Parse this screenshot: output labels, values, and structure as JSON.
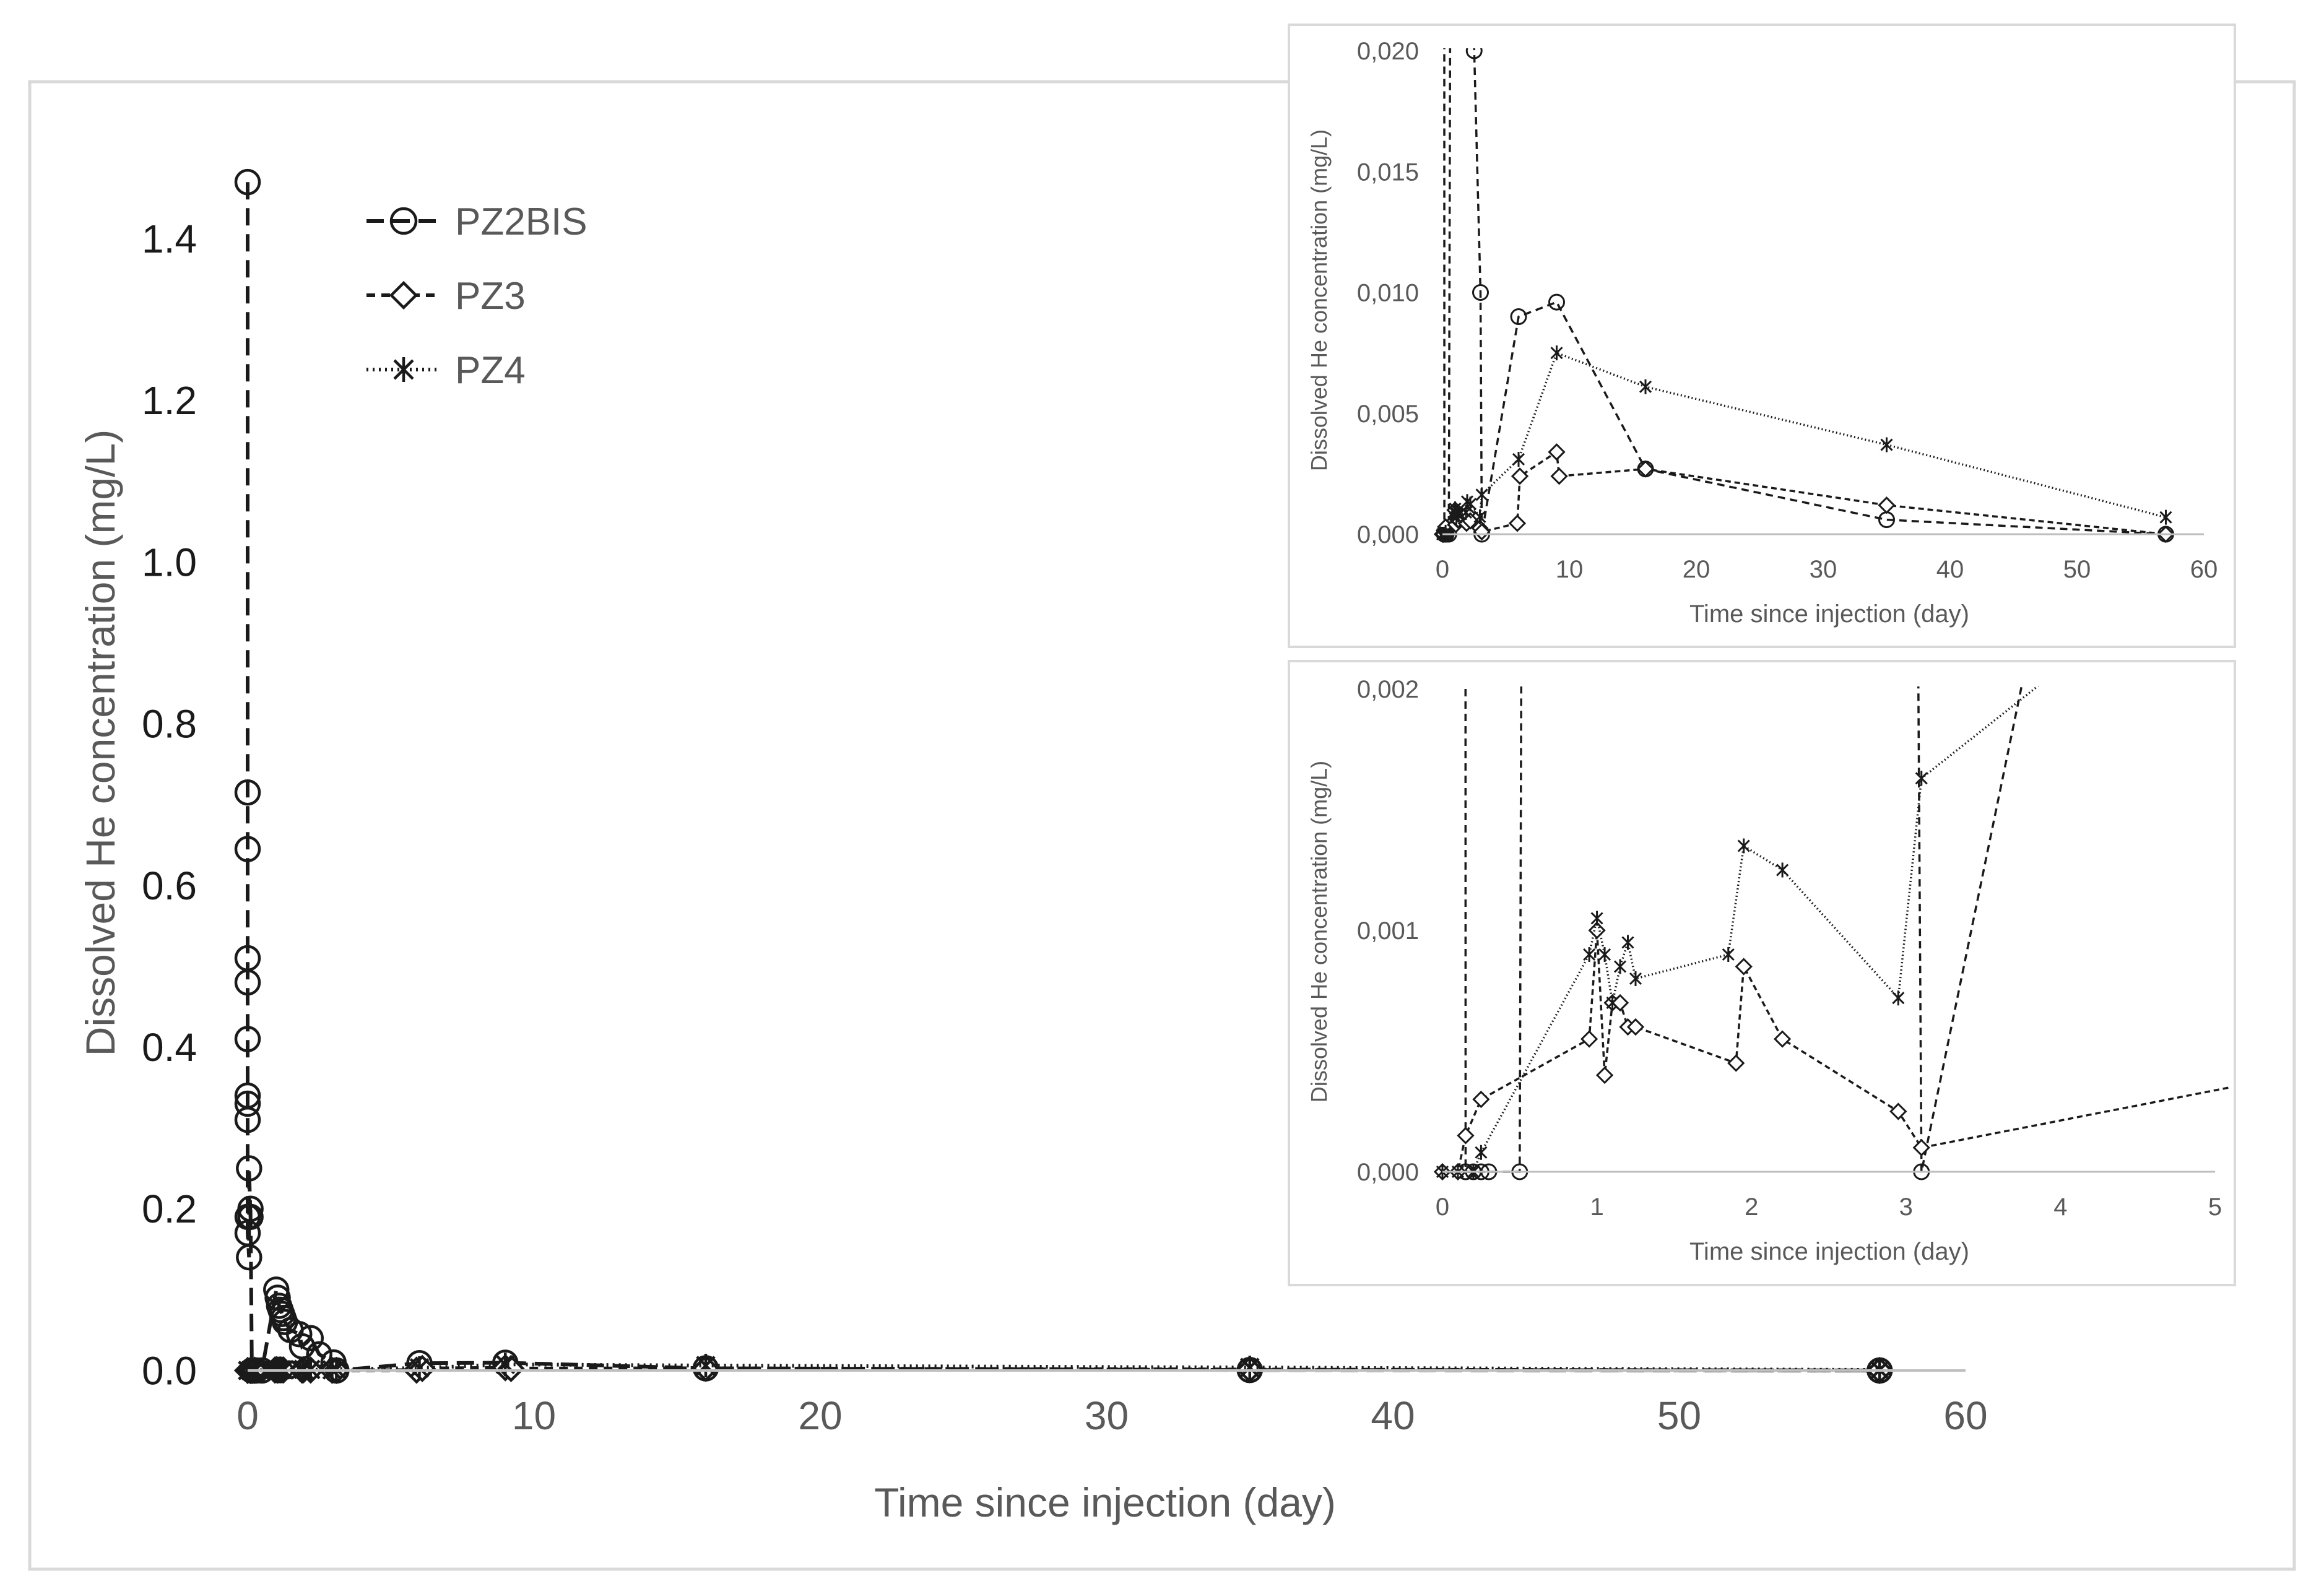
{
  "chart_data": [
    {
      "id": "main",
      "type": "line",
      "title": "",
      "xlabel": "Time since injection (day)",
      "ylabel": "Dissolved He concentration (mg/L)",
      "xlim": [
        0,
        60
      ],
      "ylim": [
        0,
        1.5
      ],
      "xticks": [
        0,
        10,
        20,
        30,
        40,
        50,
        60
      ],
      "xtick_labels": [
        "0",
        "10",
        "20",
        "30",
        "40",
        "50",
        "60"
      ],
      "yticks": [
        0.0,
        0.2,
        0.4,
        0.6,
        0.8,
        1.0,
        1.2,
        1.4
      ],
      "ytick_labels": [
        "0.0",
        "0.2",
        "0.4",
        "0.6",
        "0.8",
        "1.0",
        "1.2",
        "1.4"
      ],
      "legend": [
        "PZ2BIS",
        "PZ3",
        "PZ4"
      ],
      "series": [
        {
          "name": "PZ2BIS",
          "marker": "circle",
          "line": "longdash",
          "x": [
            0,
            0,
            0,
            0,
            0,
            0,
            0,
            0,
            0,
            0,
            0,
            0.05,
            0.05,
            0.1,
            0.1,
            0.15,
            0.15,
            0.2,
            0.25,
            0.3,
            0.5,
            1.0,
            1.05,
            1.1,
            1.15,
            1.2,
            1.25,
            1.3,
            1.5,
            1.8,
            1.9,
            2.2,
            2.5,
            3.0,
            3.1,
            6.0,
            9.0,
            16.0,
            35.0,
            57.0
          ],
          "y": [
            1.47,
            0.715,
            0.645,
            0.51,
            0.48,
            0.41,
            0.34,
            0.33,
            0.31,
            0.19,
            0.17,
            0.14,
            0.25,
            0.19,
            0.2,
            0.0,
            0.0,
            0.0,
            0.0,
            0.0,
            0.0,
            0.1,
            0.09,
            0.08,
            0.075,
            0.07,
            0.065,
            0.06,
            0.05,
            0.045,
            0.03,
            0.04,
            0.02,
            0.01,
            0.0,
            0.009,
            0.0096,
            0.0027,
            0.0006,
            0.0
          ]
        },
        {
          "name": "PZ3",
          "marker": "diamond",
          "line": "dash",
          "x": [
            0,
            0.1,
            0.15,
            0.25,
            0.95,
            1.0,
            1.05,
            1.1,
            1.15,
            1.2,
            1.25,
            1.9,
            1.95,
            2.2,
            2.95,
            3.1,
            5.9,
            6.1,
            9.0,
            9.2,
            16.0,
            35.0,
            57.0
          ],
          "y": [
            0.0,
            0.0,
            0.00015,
            0.0003,
            0.00055,
            0.001,
            0.0004,
            0.0007,
            0.0007,
            0.0006,
            0.0006,
            0.00045,
            0.00085,
            0.00055,
            0.00025,
            0.0001,
            0.00045,
            0.0024,
            0.0034,
            0.0024,
            0.0027,
            0.0012,
            0.0
          ]
        },
        {
          "name": "PZ4",
          "marker": "star",
          "line": "dot",
          "x": [
            0,
            0.1,
            0.2,
            0.25,
            0.95,
            1.0,
            1.05,
            1.1,
            1.15,
            1.2,
            1.25,
            1.85,
            1.95,
            2.2,
            2.95,
            3.1,
            6.0,
            9.0,
            16.0,
            35.0,
            57.0
          ],
          "y": [
            0.0,
            0.0,
            0.0,
            8e-05,
            0.0009,
            0.00105,
            0.0009,
            0.0007,
            0.00085,
            0.00095,
            0.0008,
            0.0009,
            0.00135,
            0.00125,
            0.00072,
            0.00163,
            0.0031,
            0.0075,
            0.0061,
            0.0037,
            0.0007
          ]
        }
      ]
    },
    {
      "id": "inset-top",
      "type": "line",
      "xlabel": "Time since injection (day)",
      "ylabel": "Dissolved He concentration (mg/L)",
      "xlim": [
        0,
        60
      ],
      "ylim": [
        0,
        0.02
      ],
      "xticks": [
        0,
        10,
        20,
        30,
        40,
        50,
        60
      ],
      "xtick_labels": [
        "0",
        "10",
        "20",
        "30",
        "40",
        "50",
        "60"
      ],
      "yticks": [
        0.0,
        0.005,
        0.01,
        0.015,
        0.02
      ],
      "ytick_labels": [
        "0,000",
        "0,005",
        "0,010",
        "0,015",
        "0,020"
      ],
      "series_ref": "main"
    },
    {
      "id": "inset-bottom",
      "type": "line",
      "xlabel": "Time since injection (day)",
      "ylabel": "Dissolved He concentration (mg/L)",
      "xlim": [
        0,
        5
      ],
      "ylim": [
        0,
        0.002
      ],
      "xticks": [
        0,
        1,
        2,
        3,
        4,
        5
      ],
      "xtick_labels": [
        "0",
        "1",
        "2",
        "3",
        "4",
        "5"
      ],
      "yticks": [
        0.0,
        0.001,
        0.002
      ],
      "ytick_labels": [
        "0,000",
        "0,001",
        "0,002"
      ],
      "series_ref": "main"
    }
  ],
  "colors": {
    "ink": "#1a1a1a",
    "axis": "#bfbfbf",
    "label": "#595959",
    "frame": "#d9d9d9"
  }
}
